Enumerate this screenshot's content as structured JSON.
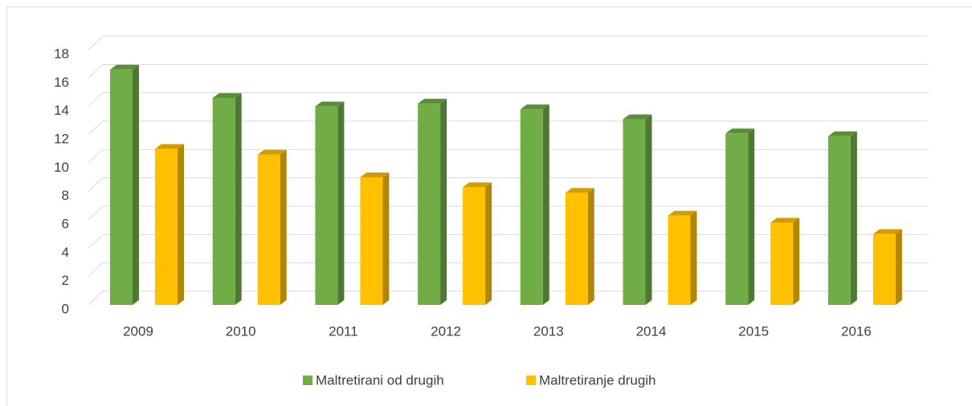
{
  "chart_data": {
    "type": "bar3d",
    "categories": [
      "2009",
      "2010",
      "2011",
      "2012",
      "2013",
      "2014",
      "2015",
      "2016"
    ],
    "series": [
      {
        "name": "Maltretirani od drugih",
        "color": "#70ad47",
        "values": [
          16.6,
          14.6,
          14.0,
          14.2,
          13.8,
          13.1,
          12.1,
          11.9
        ]
      },
      {
        "name": "Maltretiranje drugih",
        "color": "#ffc000",
        "values": [
          11.0,
          10.6,
          9.0,
          8.3,
          7.9,
          6.3,
          5.8,
          5.0
        ]
      }
    ],
    "ylim": [
      0,
      18
    ],
    "yticks": [
      0,
      2,
      4,
      6,
      8,
      10,
      12,
      14,
      16,
      18
    ],
    "grid": true,
    "legend": "bottom"
  }
}
